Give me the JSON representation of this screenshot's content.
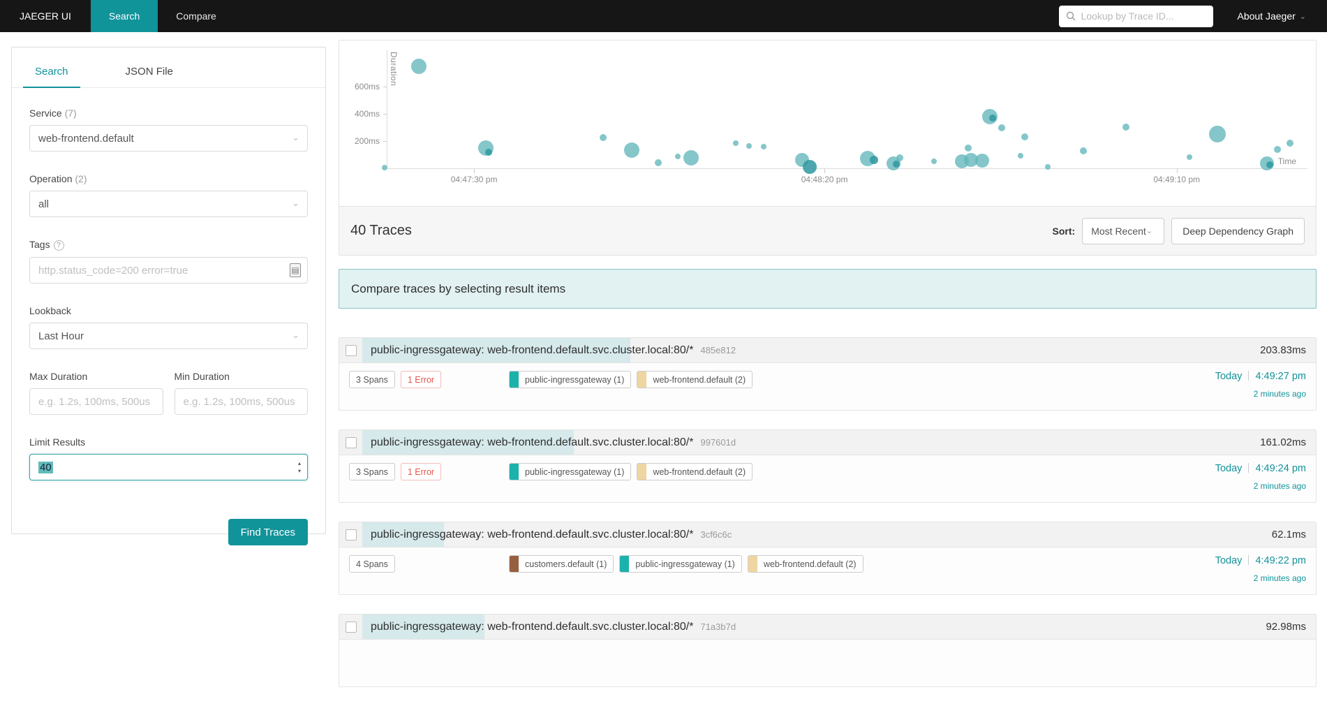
{
  "nav": {
    "brand": "JAEGER UI",
    "items": [
      {
        "label": "Search",
        "active": true
      },
      {
        "label": "Compare",
        "active": false
      }
    ],
    "trace_lookup_placeholder": "Lookup by Trace ID...",
    "about_label": "About Jaeger"
  },
  "sidebar": {
    "tabs": [
      {
        "label": "Search",
        "active": true
      },
      {
        "label": "JSON File",
        "active": false
      }
    ],
    "service": {
      "label": "Service",
      "count": "(7)",
      "value": "web-frontend.default"
    },
    "operation": {
      "label": "Operation",
      "count": "(2)",
      "value": "all"
    },
    "tags": {
      "label": "Tags",
      "placeholder": "http.status_code=200 error=true"
    },
    "lookback": {
      "label": "Lookback",
      "value": "Last Hour"
    },
    "max_duration": {
      "label": "Max Duration",
      "placeholder": "e.g. 1.2s, 100ms, 500us"
    },
    "min_duration": {
      "label": "Min Duration",
      "placeholder": "e.g. 1.2s, 100ms, 500us"
    },
    "limit": {
      "label": "Limit Results",
      "value": "40"
    },
    "find_button": "Find Traces"
  },
  "chart_data": {
    "type": "scatter",
    "xlabel": "Time",
    "ylabel": "Duration",
    "ylim_ms": [
      0,
      800
    ],
    "legend": "none",
    "grid": false,
    "point_color": "#62b6ba",
    "point_color_dark": "#2e98a0",
    "y_ticks": [
      {
        "label": "600ms",
        "ms": 600
      },
      {
        "label": "400ms",
        "ms": 400
      },
      {
        "label": "200ms",
        "ms": 200
      }
    ],
    "x_ticks": [
      {
        "label": "04:47:30 pm",
        "f": 0.1
      },
      {
        "label": "04:48:20 pm",
        "f": 0.48
      },
      {
        "label": "04:49:10 pm",
        "f": 0.862
      }
    ],
    "points": [
      {
        "f": 0.04,
        "ms": 750,
        "r": 11
      },
      {
        "f": 0.003,
        "ms": 5,
        "r": 4
      },
      {
        "f": 0.113,
        "ms": 150,
        "r": 11
      },
      {
        "f": 0.116,
        "ms": 118,
        "r": 5,
        "dark": true
      },
      {
        "f": 0.24,
        "ms": 225,
        "r": 5
      },
      {
        "f": 0.271,
        "ms": 135,
        "r": 11
      },
      {
        "f": 0.3,
        "ms": 40,
        "r": 5
      },
      {
        "f": 0.321,
        "ms": 88,
        "r": 4
      },
      {
        "f": 0.335,
        "ms": 76,
        "r": 11
      },
      {
        "f": 0.384,
        "ms": 183,
        "r": 4
      },
      {
        "f": 0.398,
        "ms": 165,
        "r": 4
      },
      {
        "f": 0.414,
        "ms": 159,
        "r": 4
      },
      {
        "f": 0.456,
        "ms": 63,
        "r": 10
      },
      {
        "f": 0.464,
        "ms": 8,
        "r": 10,
        "dark": true
      },
      {
        "f": 0.527,
        "ms": 70,
        "r": 11
      },
      {
        "f": 0.534,
        "ms": 60,
        "r": 6,
        "dark": true
      },
      {
        "f": 0.555,
        "ms": 36,
        "r": 10
      },
      {
        "f": 0.558,
        "ms": 30,
        "r": 5,
        "dark": true
      },
      {
        "f": 0.562,
        "ms": 76,
        "r": 5
      },
      {
        "f": 0.599,
        "ms": 52,
        "r": 4
      },
      {
        "f": 0.629,
        "ms": 52,
        "r": 10
      },
      {
        "f": 0.636,
        "ms": 148,
        "r": 5
      },
      {
        "f": 0.639,
        "ms": 64,
        "r": 10
      },
      {
        "f": 0.651,
        "ms": 58,
        "r": 10
      },
      {
        "f": 0.659,
        "ms": 378,
        "r": 11
      },
      {
        "f": 0.662,
        "ms": 368,
        "r": 5,
        "dark": true
      },
      {
        "f": 0.672,
        "ms": 298,
        "r": 5
      },
      {
        "f": 0.697,
        "ms": 232,
        "r": 5
      },
      {
        "f": 0.693,
        "ms": 94,
        "r": 4
      },
      {
        "f": 0.722,
        "ms": 8,
        "r": 4
      },
      {
        "f": 0.761,
        "ms": 130,
        "r": 5
      },
      {
        "f": 0.807,
        "ms": 304,
        "r": 5
      },
      {
        "f": 0.876,
        "ms": 82,
        "r": 4
      },
      {
        "f": 0.906,
        "ms": 250,
        "r": 12
      },
      {
        "f": 0.96,
        "ms": 36,
        "r": 10
      },
      {
        "f": 0.963,
        "ms": 28,
        "r": 5,
        "dark": true
      },
      {
        "f": 0.971,
        "ms": 136,
        "r": 5
      },
      {
        "f": 0.985,
        "ms": 184,
        "r": 5
      }
    ]
  },
  "results_header": {
    "count_label": "40 Traces",
    "sort_label": "Sort:",
    "sort_value": "Most Recent",
    "ddg_button": "Deep Dependency Graph"
  },
  "compare_banner": "Compare traces by selecting result items",
  "results": {
    "duration_scale_max_ms": 725,
    "traces": [
      {
        "title": "public-ingressgateway: web-frontend.default.svc.cluster.local:80/*",
        "id": "485e812",
        "duration": "203.83ms",
        "duration_ms": 203.83,
        "spans": "3 Spans",
        "error": "1 Error",
        "services": [
          {
            "label": "public-ingressgateway (1)",
            "color": "#1bb2ac"
          },
          {
            "label": "web-frontend.default (2)",
            "color": "#eed5a2"
          }
        ],
        "date": "Today",
        "time": "4:49:27 pm",
        "ago": "2 minutes ago"
      },
      {
        "title": "public-ingressgateway: web-frontend.default.svc.cluster.local:80/*",
        "id": "997601d",
        "duration": "161.02ms",
        "duration_ms": 161.02,
        "spans": "3 Spans",
        "error": "1 Error",
        "services": [
          {
            "label": "public-ingressgateway (1)",
            "color": "#1bb2ac"
          },
          {
            "label": "web-frontend.default (2)",
            "color": "#eed5a2"
          }
        ],
        "date": "Today",
        "time": "4:49:24 pm",
        "ago": "2 minutes ago"
      },
      {
        "title": "public-ingressgateway: web-frontend.default.svc.cluster.local:80/*",
        "id": "3cf6c6c",
        "duration": "62.1ms",
        "duration_ms": 62.1,
        "spans": "4 Spans",
        "error": null,
        "services": [
          {
            "label": "customers.default (1)",
            "color": "#96603e"
          },
          {
            "label": "public-ingressgateway (1)",
            "color": "#1bb2ac"
          },
          {
            "label": "web-frontend.default (2)",
            "color": "#eed5a2"
          }
        ],
        "date": "Today",
        "time": "4:49:22 pm",
        "ago": "2 minutes ago"
      },
      {
        "title": "public-ingressgateway: web-frontend.default.svc.cluster.local:80/*",
        "id": "71a3b7d",
        "duration": "92.98ms",
        "duration_ms": 92.98,
        "spans": "",
        "error": null,
        "services": [],
        "date": "",
        "time": "",
        "ago": ""
      }
    ]
  }
}
